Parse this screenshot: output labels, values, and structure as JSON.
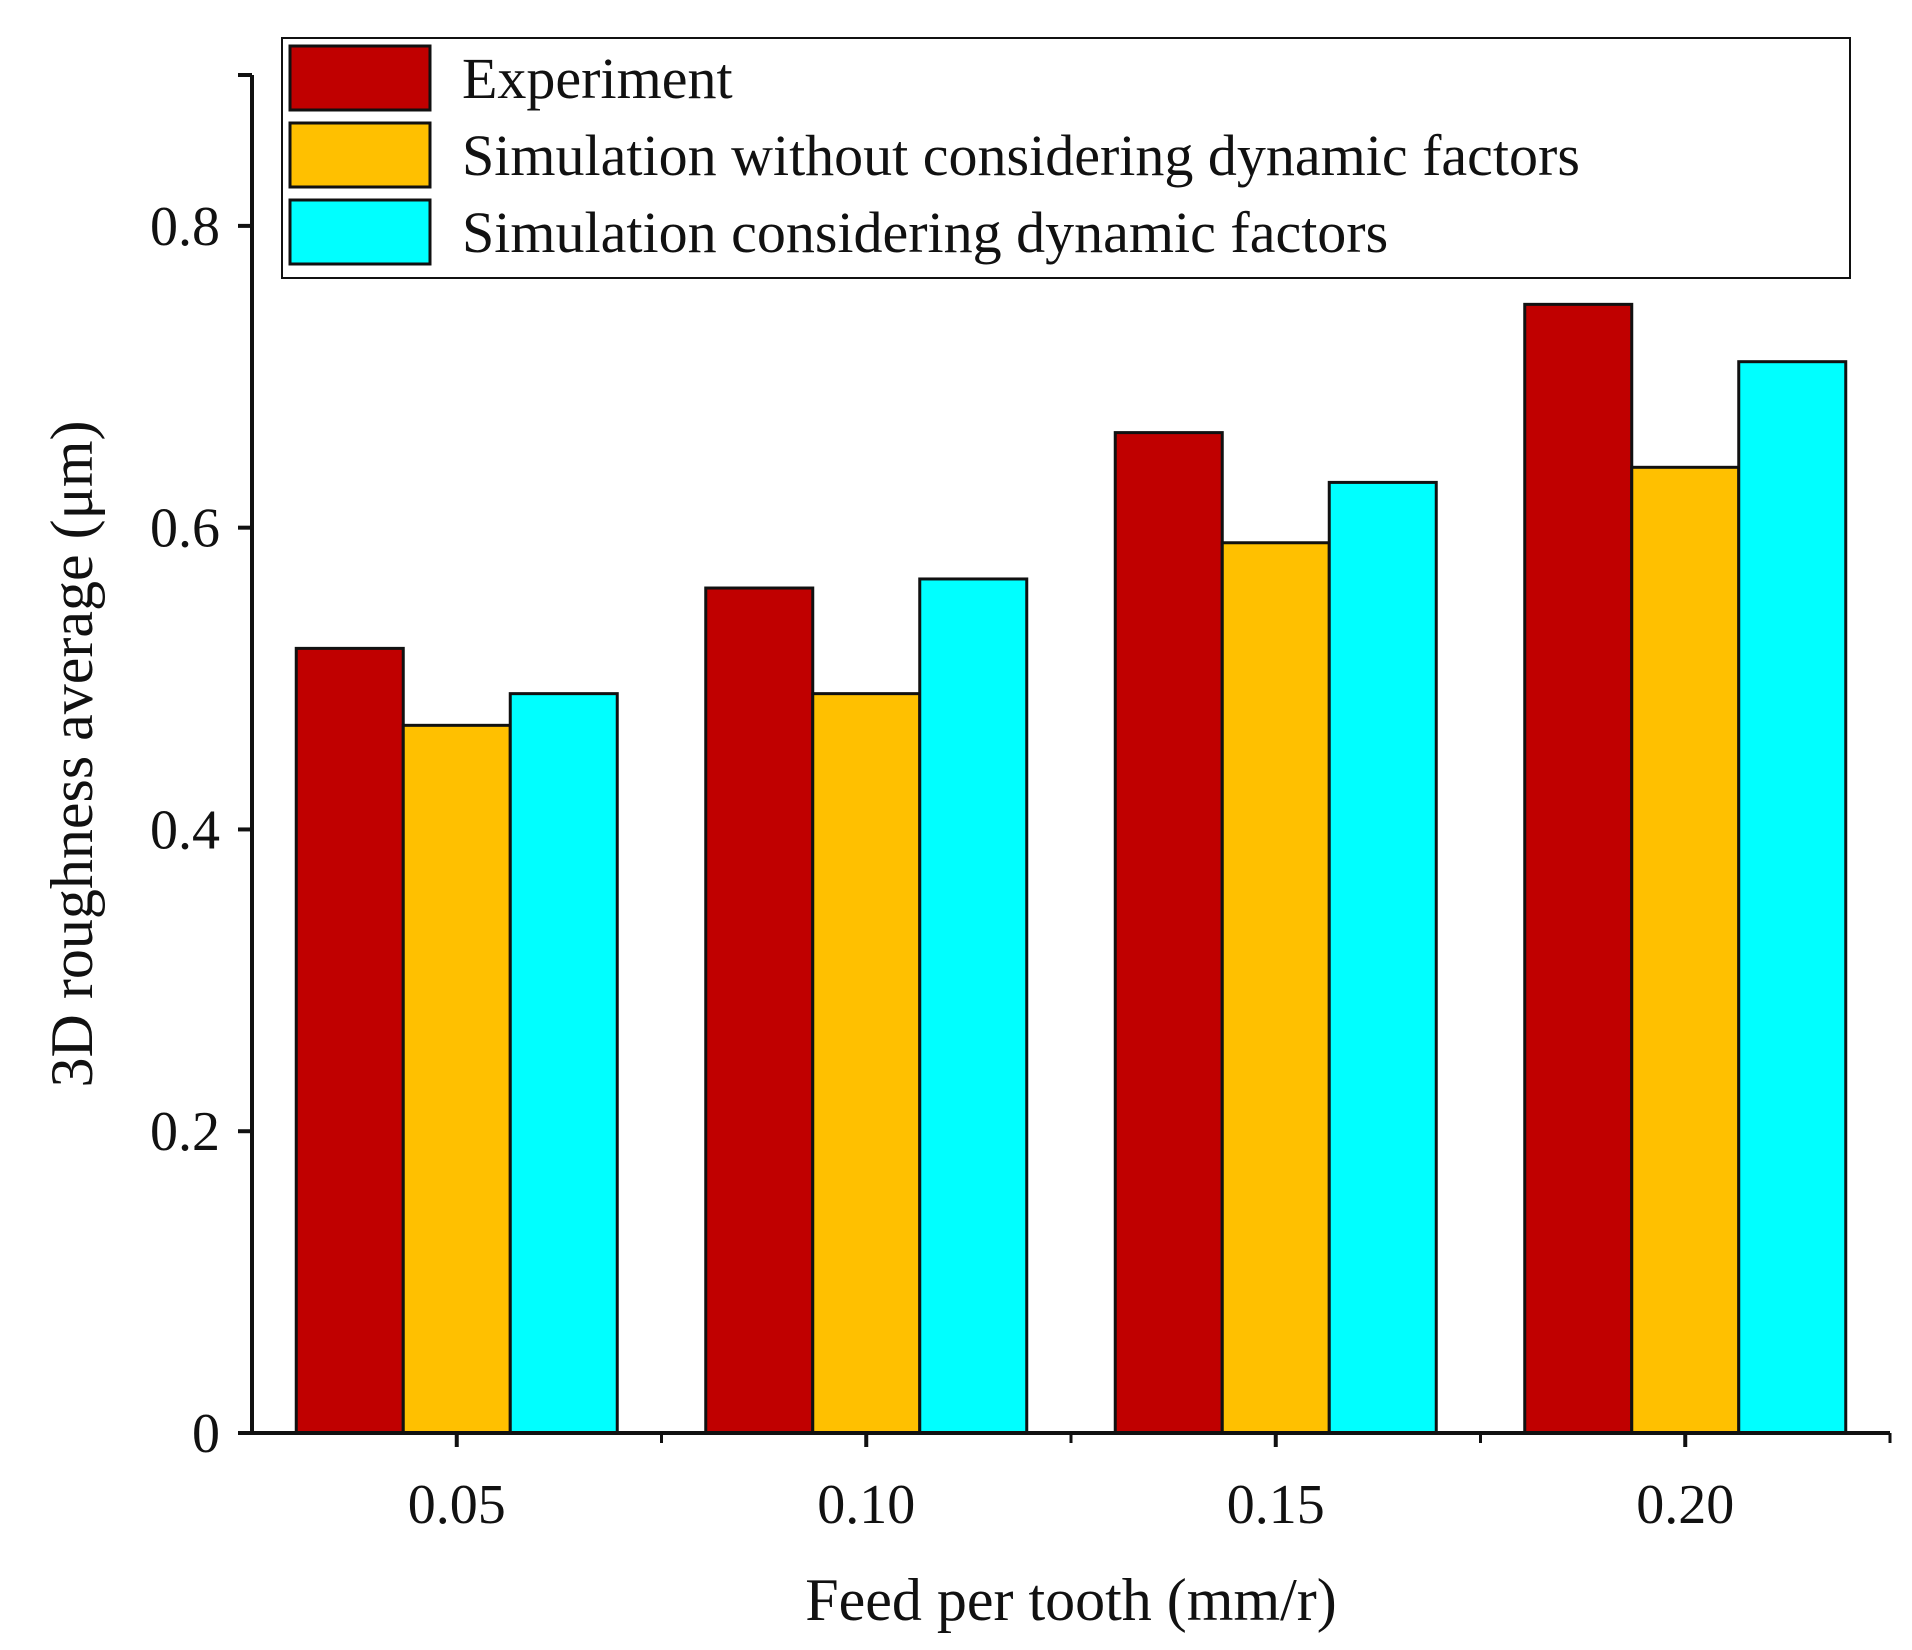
{
  "chart_data": {
    "type": "bar",
    "title": "",
    "xlabel": "Feed per tooth (mm/r)",
    "ylabel": "3D roughness average (μm)",
    "categories": [
      "0.05",
      "0.10",
      "0.15",
      "0.20"
    ],
    "ylim": [
      0,
      0.9
    ],
    "yticks": [
      0,
      0.2,
      0.4,
      0.6,
      0.8
    ],
    "ytick_labels": [
      "0",
      "0.2",
      "0.4",
      "0.6",
      "0.8"
    ],
    "legend_position": "top",
    "series": [
      {
        "name": "Experiment",
        "color": "#c00000",
        "values": [
          0.52,
          0.56,
          0.663,
          0.748
        ]
      },
      {
        "name": "Simulation without considering dynamic factors",
        "color": "#ffc000",
        "values": [
          0.469,
          0.49,
          0.59,
          0.64
        ]
      },
      {
        "name": "Simulation considering dynamic factors",
        "color": "#00ffff",
        "values": [
          0.49,
          0.566,
          0.63,
          0.71
        ]
      }
    ]
  }
}
